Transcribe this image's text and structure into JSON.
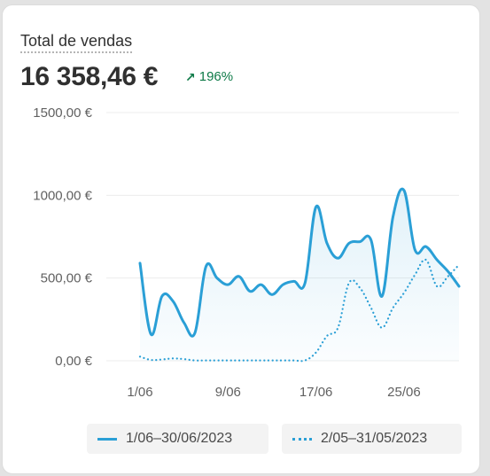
{
  "card": {
    "title": "Total de vendas",
    "total": "16 358,46 €",
    "trend": "196%",
    "trend_icon": "arrow-up-right-icon"
  },
  "legend": {
    "current": "1/06–30/06/2023",
    "previous": "2/05–31/05/2023"
  },
  "colors": {
    "series": "#2a9fd6",
    "trend": "#0d7a47",
    "grid": "#ececec"
  },
  "chart_data": {
    "type": "line",
    "ylim": [
      0,
      1500
    ],
    "yticks": [
      0,
      500,
      1000,
      1500
    ],
    "ytick_labels": [
      "0,00 €",
      "500,00 €",
      "1000,00 €",
      "1500,00 €"
    ],
    "xtick_labels": [
      "1/06",
      "9/06",
      "17/06",
      "25/06"
    ],
    "xtick_index": [
      0,
      8,
      16,
      24
    ],
    "grid": true,
    "legend_position": "bottom",
    "series": [
      {
        "name": "1/06–30/06/2023",
        "style": "solid",
        "fill": true,
        "values": [
          590,
          160,
          390,
          360,
          230,
          170,
          570,
          500,
          460,
          510,
          420,
          460,
          400,
          460,
          480,
          470,
          930,
          710,
          620,
          710,
          720,
          730,
          390,
          870,
          1030,
          670,
          690,
          610,
          540,
          450
        ]
      },
      {
        "name": "2/05–31/05/2023",
        "style": "dotted",
        "fill": false,
        "values": [
          25,
          5,
          8,
          14,
          10,
          2,
          2,
          2,
          2,
          2,
          2,
          2,
          2,
          2,
          2,
          2,
          50,
          150,
          200,
          470,
          440,
          320,
          200,
          320,
          410,
          520,
          610,
          450,
          510,
          580
        ]
      }
    ]
  }
}
